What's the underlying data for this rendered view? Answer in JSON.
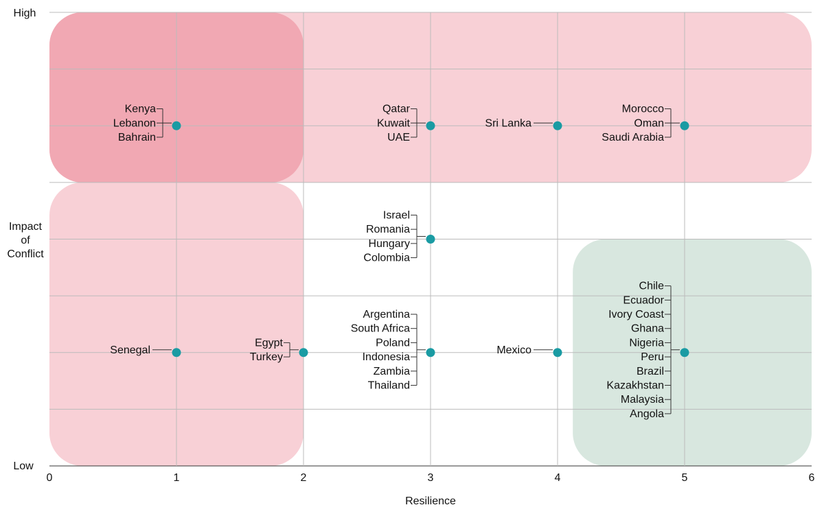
{
  "chart_data": {
    "type": "scatter",
    "title": "",
    "xlabel": "Resilience",
    "ylabel_lines": [
      "Impact",
      "of",
      "Conflict"
    ],
    "y_high_label": "High",
    "y_low_label": "Low",
    "xlim": [
      0,
      6
    ],
    "ylim": [
      0,
      8
    ],
    "x_ticks": [
      "0",
      "1",
      "2",
      "3",
      "4",
      "5",
      "6"
    ],
    "grid": true,
    "colors": {
      "point": "#1a9ba3",
      "zone_high_light": "#f8d0d6",
      "zone_high_dark": "#f1a8b3",
      "zone_low": "#d8e7df"
    },
    "points": [
      {
        "x": 1,
        "y": 6,
        "side": "left",
        "labels": [
          "Kenya",
          "Lebanon",
          "Bahrain"
        ]
      },
      {
        "x": 3,
        "y": 6,
        "side": "left",
        "labels": [
          "Qatar",
          "Kuwait",
          "UAE"
        ]
      },
      {
        "x": 4,
        "y": 6,
        "side": "left",
        "labels": [
          "Sri Lanka"
        ]
      },
      {
        "x": 5,
        "y": 6,
        "side": "left",
        "labels": [
          "Morocco",
          "Oman",
          "Saudi Arabia"
        ]
      },
      {
        "x": 3,
        "y": 4,
        "side": "left",
        "labels": [
          "Israel",
          "Romania",
          "Hungary",
          "Colombia"
        ]
      },
      {
        "x": 1,
        "y": 2,
        "side": "left",
        "labels": [
          "Senegal"
        ]
      },
      {
        "x": 2,
        "y": 2,
        "side": "left",
        "labels": [
          "Egypt",
          "Turkey"
        ]
      },
      {
        "x": 3,
        "y": 2,
        "side": "left",
        "labels": [
          "Argentina",
          "South Africa",
          "Poland",
          "Indonesia",
          "Zambia",
          "Thailand"
        ]
      },
      {
        "x": 4,
        "y": 2,
        "side": "left",
        "labels": [
          "Mexico"
        ]
      },
      {
        "x": 5,
        "y": 2,
        "side": "left",
        "labels": [
          "Chile",
          "Ecuador",
          "Ivory Coast",
          "Ghana",
          "Nigeria",
          "Peru",
          "Brazil",
          "Kazakhstan",
          "Malaysia",
          "Angola"
        ]
      }
    ],
    "zones": [
      {
        "name": "high-impact-band",
        "x0": 0,
        "x1": 6,
        "y0": 5,
        "y1": 8,
        "tone": "zone_high_light"
      },
      {
        "name": "low-resilience-band",
        "x0": 0,
        "x1": 2,
        "y0": 0,
        "y1": 5,
        "tone": "zone_high_light"
      },
      {
        "name": "overlap-zone",
        "x0": 0,
        "x1": 2,
        "y0": 5,
        "y1": 8,
        "tone": "zone_high_dark"
      },
      {
        "name": "low-impact-high-resilience-zone",
        "x0": 4.12,
        "x1": 6,
        "y0": 0,
        "y1": 4,
        "tone": "zone_low"
      }
    ]
  }
}
